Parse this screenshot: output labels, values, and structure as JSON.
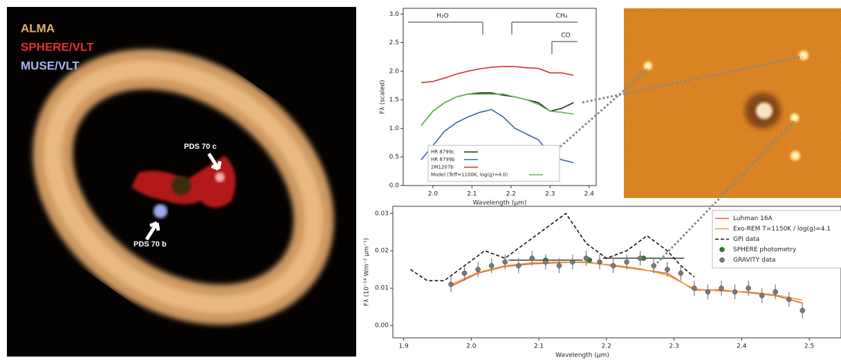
{
  "image_labels": {
    "instruments": [
      "ALMA",
      "SPHERE/VLT",
      "MUSE/VLT"
    ],
    "planets": [
      "PDS 70 c",
      "PDS 70 b"
    ]
  },
  "chart_data": [
    {
      "type": "line",
      "x_label": "Wavelength (µm)",
      "y_label": "Fλ (scaled)",
      "annotations": [
        "H₂O",
        "CH₄",
        "CO"
      ],
      "x": [
        1.97,
        2.0,
        2.03,
        2.06,
        2.09,
        2.12,
        2.15,
        2.18,
        2.21,
        2.24,
        2.27,
        2.3,
        2.33,
        2.36
      ],
      "series": [
        {
          "name": "HR 8799c",
          "color": "#222222",
          "values": [
            1.05,
            1.3,
            1.45,
            1.55,
            1.6,
            1.62,
            1.62,
            1.58,
            1.55,
            1.5,
            1.45,
            1.3,
            1.35,
            1.45
          ]
        },
        {
          "name": "HR 8799b",
          "color": "#3a5fb0",
          "values": [
            0.45,
            0.7,
            0.95,
            1.1,
            1.2,
            1.28,
            1.33,
            1.2,
            1.0,
            0.9,
            0.8,
            0.55,
            0.45,
            0.4
          ]
        },
        {
          "name": "2M1207b",
          "color": "#d03030",
          "values": [
            1.8,
            1.82,
            1.88,
            1.95,
            2.0,
            2.04,
            2.07,
            2.08,
            2.08,
            2.06,
            2.05,
            1.97,
            1.97,
            1.93
          ]
        },
        {
          "name": "Model (Teff=1100K, log(g)=4.0)",
          "color": "#5cb84a",
          "values": [
            1.05,
            1.3,
            1.45,
            1.55,
            1.6,
            1.6,
            1.6,
            1.6,
            1.55,
            1.5,
            1.42,
            1.3,
            1.28,
            1.25
          ]
        }
      ],
      "xlim": [
        1.924,
        2.418
      ],
      "ylim": [
        0,
        3.1
      ],
      "xticks": [
        {
          "value": 2.0,
          "label": "2.0"
        },
        2.1,
        2.2,
        2.3,
        2.4
      ],
      "yticks": [
        {
          "value": 0,
          "label": "0.0"
        },
        0.5,
        {
          "value": 1,
          "label": "1.0"
        },
        1.5,
        {
          "value": 2,
          "label": "2.0"
        },
        2.5,
        {
          "value": 3,
          "label": "3.0"
        }
      ],
      "legend": "lower left"
    },
    {
      "type": "line",
      "x_label": "Wavelength (µm)",
      "y_label": "Fλ (10⁻¹⁴ Wm⁻² µm⁻¹)",
      "series": [
        {
          "name": "Luhman 16A",
          "color": "#e0602a",
          "kind": "line",
          "x": [
            1.97,
            2.01,
            2.05,
            2.09,
            2.13,
            2.17,
            2.21,
            2.25,
            2.29,
            2.33,
            2.37,
            2.41,
            2.45,
            2.49
          ],
          "values": [
            0.0105,
            0.014,
            0.0158,
            0.0165,
            0.0168,
            0.017,
            0.016,
            0.015,
            0.014,
            0.0095,
            0.0095,
            0.0088,
            0.008,
            0.006
          ]
        },
        {
          "name": "Exo-REM T=1150K / log(g)=4.1",
          "color": "#e8a040",
          "kind": "line",
          "x": [
            1.97,
            2.01,
            2.05,
            2.09,
            2.13,
            2.17,
            2.21,
            2.25,
            2.29,
            2.33,
            2.37,
            2.41,
            2.45,
            2.49
          ],
          "values": [
            0.011,
            0.0142,
            0.016,
            0.0168,
            0.017,
            0.0168,
            0.0162,
            0.0152,
            0.0135,
            0.0098,
            0.0092,
            0.009,
            0.0082,
            0.0068
          ]
        },
        {
          "name": "GPI data",
          "color": "#111111",
          "kind": "line",
          "dashed": true,
          "x": [
            1.91,
            1.935,
            1.96,
            1.99,
            2.02,
            2.05,
            2.08,
            2.11,
            2.14,
            2.17,
            2.2,
            2.23,
            2.26,
            2.29,
            2.31,
            2.33
          ],
          "values": [
            0.015,
            0.012,
            0.012,
            0.016,
            0.02,
            0.018,
            0.022,
            0.026,
            0.03,
            0.022,
            0.018,
            0.02,
            0.024,
            0.02,
            0.016,
            0.013
          ]
        },
        {
          "name": "SPHERE photometry",
          "color": "#2f7a2f",
          "kind": "points",
          "x": [
            2.11,
            2.175,
            2.255
          ],
          "x_errors": [
            0.055,
            0.0,
            0.06
          ],
          "values": [
            0.0175,
            0.0175,
            0.018
          ]
        },
        {
          "name": "GRAVITY data",
          "color": "#7a7a7a",
          "kind": "points",
          "x": [
            1.97,
            1.99,
            2.01,
            2.03,
            2.05,
            2.07,
            2.09,
            2.11,
            2.13,
            2.15,
            2.17,
            2.19,
            2.21,
            2.23,
            2.25,
            2.27,
            2.29,
            2.31,
            2.33,
            2.35,
            2.37,
            2.39,
            2.41,
            2.43,
            2.45,
            2.47,
            2.49
          ],
          "values": [
            0.011,
            0.014,
            0.015,
            0.016,
            0.017,
            0.016,
            0.018,
            0.017,
            0.016,
            0.017,
            0.018,
            0.017,
            0.016,
            0.017,
            0.018,
            0.016,
            0.015,
            0.014,
            0.01,
            0.009,
            0.01,
            0.009,
            0.01,
            0.008,
            0.009,
            0.007,
            0.004
          ],
          "errors": [
            0.002,
            0.002,
            0.002,
            0.002,
            0.002,
            0.002,
            0.002,
            0.002,
            0.002,
            0.002,
            0.002,
            0.002,
            0.002,
            0.002,
            0.002,
            0.002,
            0.002,
            0.002,
            0.002,
            0.002,
            0.002,
            0.002,
            0.002,
            0.002,
            0.002,
            0.002,
            0.002
          ]
        }
      ],
      "xlim": [
        1.884,
        2.547
      ],
      "ylim": [
        -0.0033,
        0.0319
      ],
      "xticks": [
        1.9,
        {
          "value": 2.0,
          "label": "2.0"
        },
        2.1,
        2.2,
        2.3,
        2.4,
        2.5
      ],
      "yticks": [
        {
          "value": 0,
          "label": "0.00"
        },
        0.01,
        0.02,
        0.03
      ],
      "legend": "upper right"
    }
  ]
}
